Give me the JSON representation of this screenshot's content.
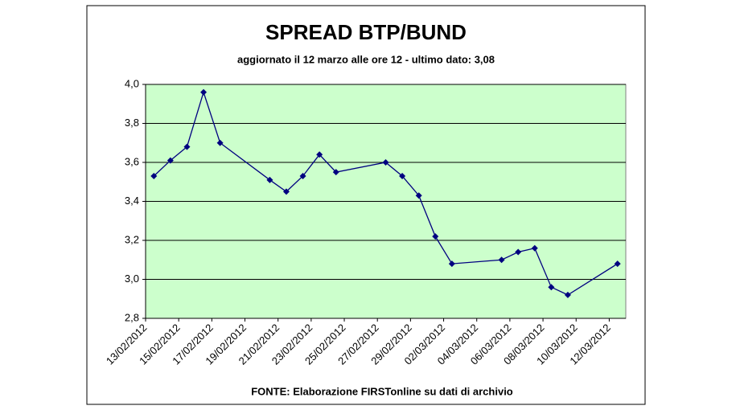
{
  "chart_data": {
    "type": "line",
    "title": "SPREAD BTP/BUND",
    "subtitle": "aggiornato il 12 marzo alle ore 12 - ultimo dato: 3,08",
    "footer": "FONTE: Elaborazione FIRSTonline su dati di archivio",
    "x": [
      "13/02/2012",
      "14/02/2012",
      "15/02/2012",
      "16/02/2012",
      "17/02/2012",
      "20/02/2012",
      "21/02/2012",
      "22/02/2012",
      "23/02/2012",
      "24/02/2012",
      "27/02/2012",
      "28/02/2012",
      "29/02/2012",
      "01/03/2012",
      "02/03/2012",
      "05/03/2012",
      "06/03/2012",
      "07/03/2012",
      "08/03/2012",
      "09/03/2012",
      "12/03/2012"
    ],
    "series": [
      {
        "name": "Spread",
        "color": "#000080",
        "values": [
          3.53,
          3.61,
          3.68,
          3.96,
          3.7,
          3.51,
          3.45,
          3.53,
          3.64,
          3.55,
          3.6,
          3.53,
          3.43,
          3.22,
          3.08,
          3.1,
          3.14,
          3.16,
          2.96,
          2.92,
          3.08
        ]
      }
    ],
    "xlim": [
      "13/02/2012",
      "12/03/2012"
    ],
    "xticks": [
      "13/02/2012",
      "15/02/2012",
      "17/02/2012",
      "19/02/2012",
      "21/02/2012",
      "23/02/2012",
      "25/02/2012",
      "27/02/2012",
      "29/02/2012",
      "02/03/2012",
      "04/03/2012",
      "06/03/2012",
      "08/03/2012",
      "10/03/2012",
      "12/03/2012"
    ],
    "ylim": [
      2.8,
      4.0
    ],
    "yticks": [
      {
        "value": 2.8,
        "label": "2,8"
      },
      {
        "value": 3.0,
        "label": "3,0"
      },
      {
        "value": 3.2,
        "label": "3,2"
      },
      {
        "value": 3.4,
        "label": "3,4"
      },
      {
        "value": 3.6,
        "label": "3,6"
      },
      {
        "value": 3.8,
        "label": "3,8"
      },
      {
        "value": 4.0,
        "label": "4,0"
      }
    ],
    "grid": true,
    "plot_background": "#ccffcc"
  }
}
